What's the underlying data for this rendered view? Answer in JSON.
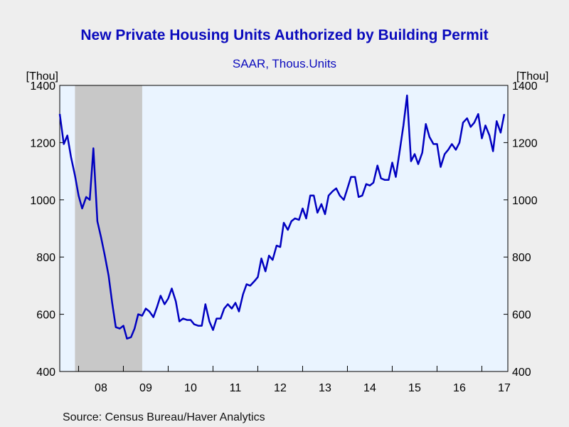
{
  "chart_data": {
    "type": "line",
    "title": "New Private Housing Units Authorized by Building Permit",
    "subtitle": "SAAR, Thous.Units",
    "y_unit_left": "[Thou]",
    "y_unit_right": "[Thou]",
    "ylim": [
      400,
      1400
    ],
    "yticks": [
      "400",
      "600",
      "800",
      "1000",
      "1200",
      "1400"
    ],
    "xlim": [
      2007.58,
      2017.58
    ],
    "xtick_labels": [
      "08",
      "09",
      "10",
      "11",
      "12",
      "13",
      "14",
      "15",
      "16",
      "17"
    ],
    "grid": false,
    "recession_shading": {
      "start": 2007.92,
      "end": 2009.42,
      "color": "#c8c8c8"
    },
    "colors": {
      "line": "#0000c0",
      "plot_bg": "#eaf4ff",
      "title": "#0b0bbd"
    },
    "series": [
      {
        "x": [
          2007.58,
          2007.67,
          2007.75,
          2007.83,
          2007.92,
          2008.0,
          2008.08,
          2008.17,
          2008.25,
          2008.33,
          2008.42,
          2008.5,
          2008.58,
          2008.67,
          2008.75,
          2008.83,
          2008.92,
          2009.0,
          2009.08,
          2009.17,
          2009.25,
          2009.33,
          2009.42,
          2009.5,
          2009.58,
          2009.67,
          2009.75,
          2009.83,
          2009.92,
          2010.0,
          2010.08,
          2010.17,
          2010.25,
          2010.33,
          2010.42,
          2010.5,
          2010.58,
          2010.67,
          2010.75,
          2010.83,
          2010.92,
          2011.0,
          2011.08,
          2011.17,
          2011.25,
          2011.33,
          2011.42,
          2011.5,
          2011.58,
          2011.67,
          2011.75,
          2011.83,
          2011.92,
          2012.0,
          2012.08,
          2012.17,
          2012.25,
          2012.33,
          2012.42,
          2012.5,
          2012.58,
          2012.67,
          2012.75,
          2012.83,
          2012.92,
          2013.0,
          2013.08,
          2013.17,
          2013.25,
          2013.33,
          2013.42,
          2013.5,
          2013.58,
          2013.67,
          2013.75,
          2013.83,
          2013.92,
          2014.0,
          2014.08,
          2014.17,
          2014.25,
          2014.33,
          2014.42,
          2014.5,
          2014.58,
          2014.67,
          2014.75,
          2014.83,
          2014.92,
          2015.0,
          2015.08,
          2015.17,
          2015.25,
          2015.33,
          2015.42,
          2015.5,
          2015.58,
          2015.67,
          2015.75,
          2015.83,
          2015.92,
          2016.0,
          2016.08,
          2016.17,
          2016.25,
          2016.33,
          2016.42,
          2016.5,
          2016.58,
          2016.67,
          2016.75,
          2016.83,
          2016.92,
          2017.0,
          2017.08,
          2017.17,
          2017.25,
          2017.33,
          2017.42,
          2017.5
        ],
        "y": [
          1300,
          1195,
          1225,
          1150,
          1085,
          1015,
          970,
          1010,
          1000,
          1180,
          925,
          870,
          810,
          735,
          640,
          555,
          550,
          560,
          515,
          520,
          550,
          600,
          595,
          620,
          610,
          590,
          625,
          665,
          635,
          655,
          690,
          645,
          575,
          585,
          580,
          580,
          565,
          560,
          560,
          635,
          575,
          545,
          585,
          585,
          620,
          635,
          620,
          640,
          610,
          670,
          705,
          700,
          715,
          730,
          795,
          750,
          805,
          790,
          840,
          835,
          920,
          895,
          925,
          935,
          930,
          970,
          935,
          1015,
          1015,
          955,
          985,
          950,
          1015,
          1030,
          1040,
          1015,
          1000,
          1040,
          1080,
          1080,
          1010,
          1015,
          1055,
          1050,
          1060,
          1120,
          1075,
          1070,
          1070,
          1130,
          1080,
          1175,
          1260,
          1365,
          1135,
          1160,
          1125,
          1165,
          1265,
          1220,
          1195,
          1195,
          1115,
          1160,
          1175,
          1195,
          1175,
          1200,
          1270,
          1285,
          1255,
          1270,
          1300,
          1215,
          1260,
          1225,
          1170,
          1275,
          1235,
          1300
        ]
      }
    ]
  },
  "source": "Source:  Census Bureau/Haver Analytics"
}
